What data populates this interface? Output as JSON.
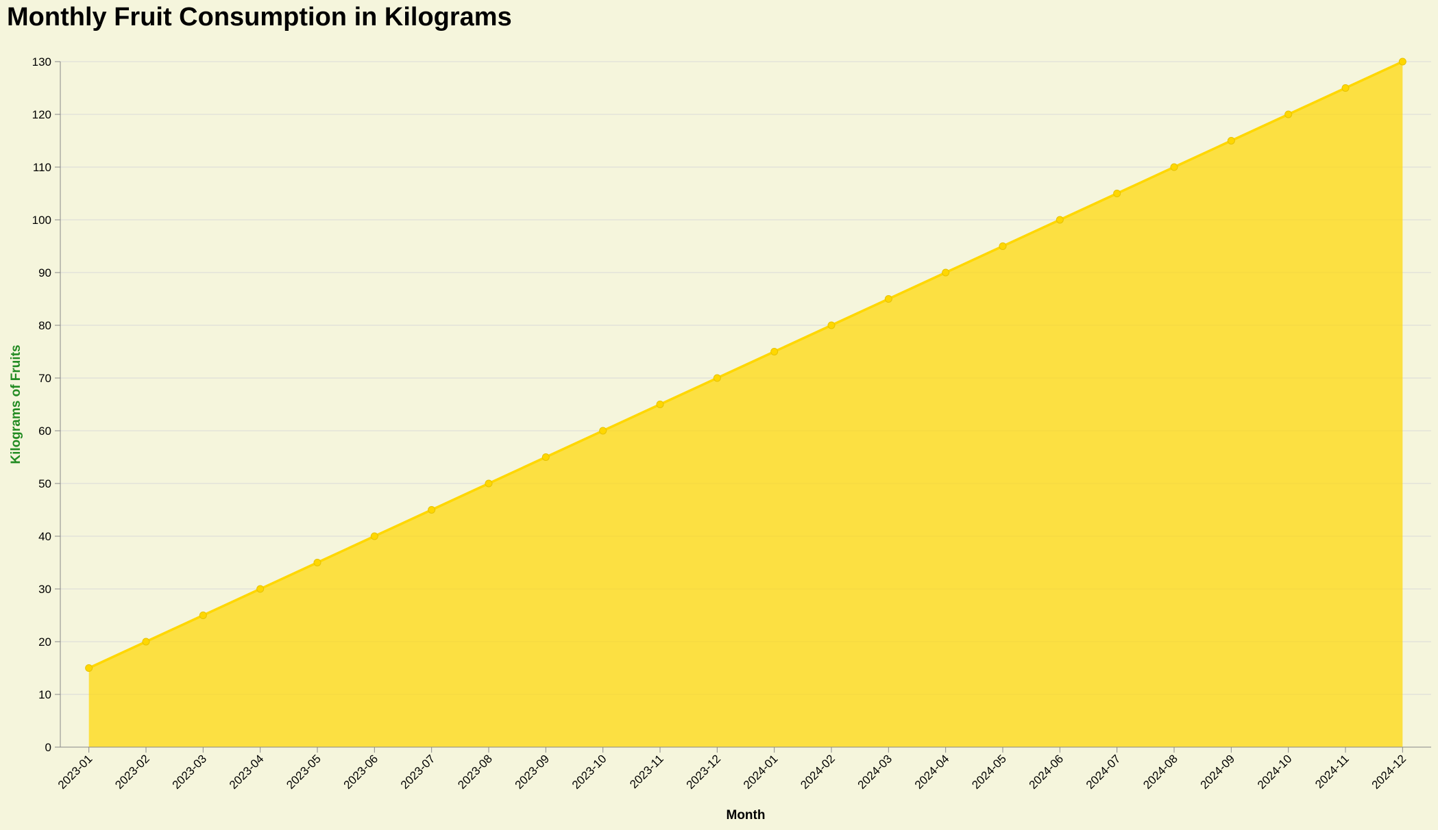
{
  "chart_data": {
    "type": "area",
    "title": "Monthly Fruit Consumption in Kilograms",
    "xlabel": "Month",
    "ylabel": "Kilograms of Fruits",
    "categories": [
      "2023-01",
      "2023-02",
      "2023-03",
      "2023-04",
      "2023-05",
      "2023-06",
      "2023-07",
      "2023-08",
      "2023-09",
      "2023-10",
      "2023-11",
      "2023-12",
      "2024-01",
      "2024-02",
      "2024-03",
      "2024-04",
      "2024-05",
      "2024-06",
      "2024-07",
      "2024-08",
      "2024-09",
      "2024-10",
      "2024-11",
      "2024-12"
    ],
    "values": [
      15,
      20,
      25,
      30,
      35,
      40,
      45,
      50,
      55,
      60,
      65,
      70,
      75,
      80,
      85,
      90,
      95,
      100,
      105,
      110,
      115,
      120,
      125,
      130
    ],
    "ylim": [
      0,
      130
    ],
    "yticks": [
      0,
      10,
      20,
      30,
      40,
      50,
      60,
      70,
      80,
      90,
      100,
      110,
      120,
      130
    ],
    "grid": true,
    "legend": "none",
    "colors": {
      "background": "#f5f5dc",
      "area_fill": "#ffd700",
      "line": "#ffd700",
      "ylabel": "#228b22",
      "grid": "#d9d9d9",
      "axis": "#888888"
    }
  }
}
